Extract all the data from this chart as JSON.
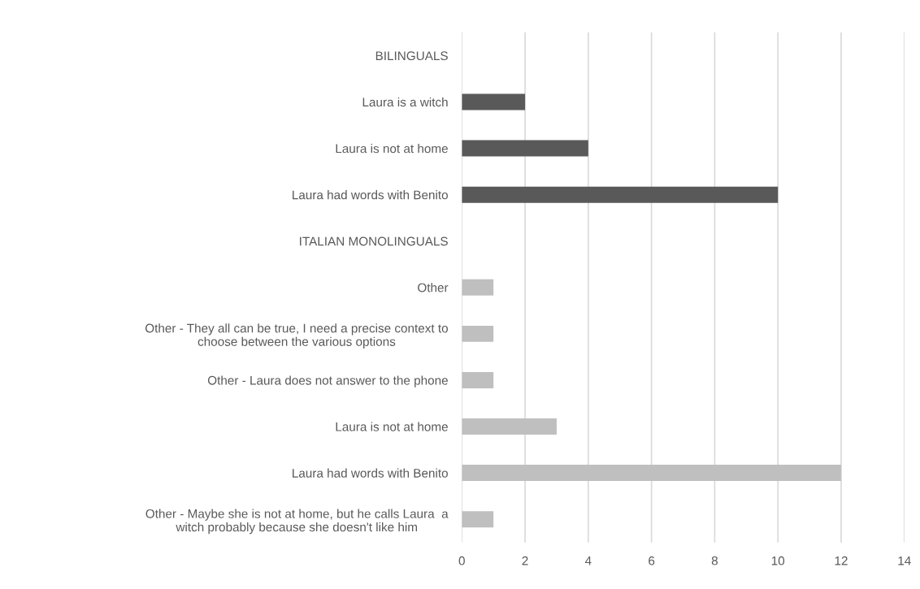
{
  "chart_data": {
    "type": "bar",
    "orientation": "horizontal",
    "categories": [
      "BILINGUALS",
      "Laura is a witch",
      "Laura is not at home",
      "Laura had words with Benito",
      "ITALIAN MONOLINGUALS",
      "Other",
      "Other - They all can be true, I need a precise context to choose between the various options",
      "Other - Laura does not answer to the phone",
      "Laura is not at home",
      "Laura had words with Benito",
      "Other - Maybe she is not at home, but he calls Laura  a witch probably because she doesn't like him"
    ],
    "values": [
      null,
      2,
      4,
      10,
      null,
      1,
      1,
      1,
      3,
      12,
      1
    ],
    "colors": [
      "#595959",
      "#595959",
      "#595959",
      "#595959",
      "#bfbfbf",
      "#bfbfbf",
      "#bfbfbf",
      "#bfbfbf",
      "#bfbfbf",
      "#bfbfbf",
      "#bfbfbf"
    ],
    "xlim": [
      0,
      14
    ],
    "xticks": [
      0,
      2,
      4,
      6,
      8,
      10,
      12,
      14
    ],
    "grid": "x"
  }
}
